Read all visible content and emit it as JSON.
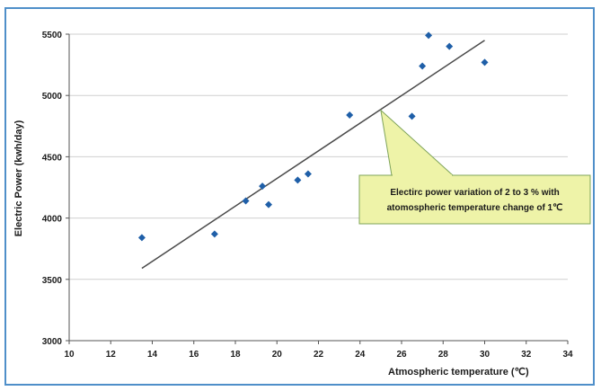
{
  "chart_data": {
    "type": "scatter",
    "title": "",
    "xlabel": "Atmospheric temperature (℃)",
    "ylabel": "Electric Power (kwh/day)",
    "xlim": [
      10,
      34
    ],
    "ylim": [
      3000,
      5500
    ],
    "xticks": [
      10,
      12,
      14,
      16,
      18,
      20,
      22,
      24,
      26,
      28,
      30,
      32,
      34
    ],
    "yticks": [
      3000,
      3500,
      4000,
      4500,
      5000,
      5500
    ],
    "grid": "horizontal",
    "series": [
      {
        "points": [
          {
            "x": 13.5,
            "y": 3840
          },
          {
            "x": 17.0,
            "y": 3870
          },
          {
            "x": 18.5,
            "y": 4140
          },
          {
            "x": 19.3,
            "y": 4260
          },
          {
            "x": 19.6,
            "y": 4110
          },
          {
            "x": 21.0,
            "y": 4310
          },
          {
            "x": 21.5,
            "y": 4360
          },
          {
            "x": 23.5,
            "y": 4840
          },
          {
            "x": 26.5,
            "y": 4830
          },
          {
            "x": 27.0,
            "y": 5240
          },
          {
            "x": 27.3,
            "y": 5490
          },
          {
            "x": 28.3,
            "y": 5400
          },
          {
            "x": 30.0,
            "y": 5270
          }
        ],
        "color": "#1f5fa8"
      }
    ],
    "trendline": {
      "x1": 13.5,
      "y1": 3590,
      "x2": 30.0,
      "y2": 5450,
      "color": "#4a4a4a"
    },
    "annotation": {
      "lines": [
        "Electirc  power  variation of 2 to 3 % with",
        "atomospheric temperature change of  1℃"
      ],
      "point": {
        "x": 25.0,
        "y": 4880
      },
      "fill": "#eef3a8",
      "border": "#7fa45a"
    }
  }
}
